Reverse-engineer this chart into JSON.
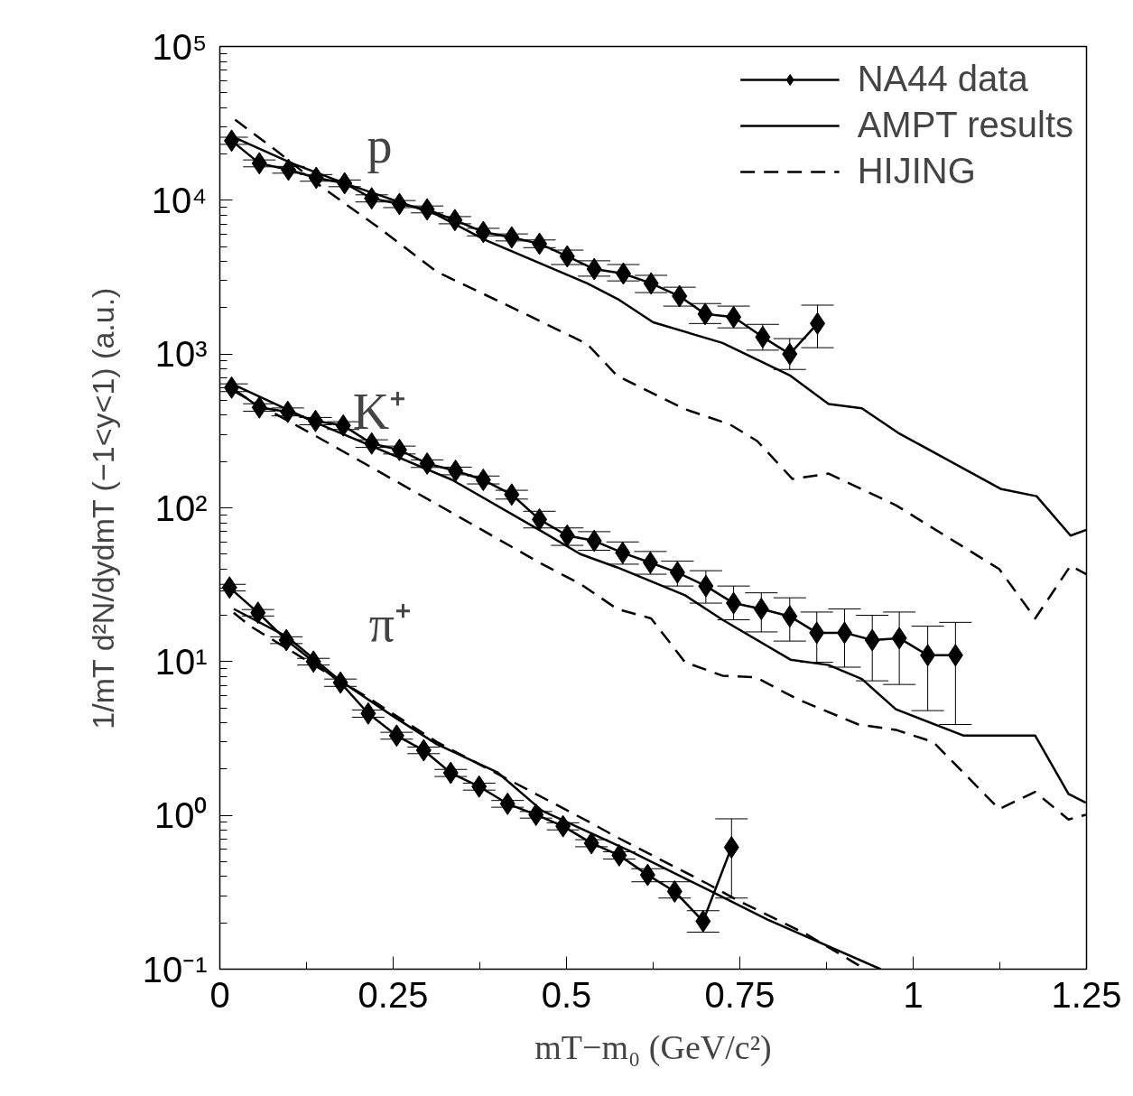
{
  "chart_data": {
    "type": "line",
    "xlabel": "mT−m₀ (GeV/c²)",
    "ylabel": "1/mT d²N/dydmT (−1<y<1) (a.u.)",
    "log": "y",
    "grid": false,
    "legend": "top right",
    "xlim": [
      0,
      1.25
    ],
    "ylim": [
      0.1,
      100000
    ],
    "xticks": [
      0,
      0.25,
      0.5,
      0.75,
      1,
      1.25
    ],
    "yticks": [
      {
        "value": 0.1,
        "label": "10⁻¹"
      },
      {
        "value": 1,
        "label": "10⁰"
      },
      {
        "value": 10,
        "label": "10¹"
      },
      {
        "value": 100,
        "label": "10²"
      },
      {
        "value": 1000,
        "label": "10³"
      },
      {
        "value": 10000,
        "label": "10⁴"
      },
      {
        "value": 100000,
        "label": "10⁵"
      }
    ],
    "annotations": [
      "p",
      "K⁺",
      "π⁺"
    ],
    "series": [
      {
        "name": "NA44 data",
        "color": "#000000",
        "marker": "diamond",
        "line_style": "solid",
        "x": [
          0.017,
          0.057,
          0.099,
          0.139,
          0.18,
          0.219,
          0.259,
          0.299,
          0.339,
          0.38,
          0.421,
          0.461,
          0.501,
          0.54,
          0.582,
          0.622,
          0.663,
          0.7,
          0.741,
          0.783,
          0.822,
          0.862
        ],
        "values": [
          24400,
          17400,
          15800,
          14000,
          12900,
          10300,
          9460,
          8730,
          7430,
          6220,
          5740,
          5220,
          4320,
          3570,
          3340,
          2880,
          2380,
          1820,
          1740,
          1290,
          1000,
          1580
        ],
        "errors": [
          1300,
          900,
          800,
          700,
          650,
          550,
          500,
          450,
          400,
          350,
          300,
          300,
          [
            3820,
            4740
          ],
          [
            3210,
            4040
          ],
          [
            2990,
            3820
          ],
          [
            2510,
            3250
          ],
          [
            2050,
            2720
          ],
          [
            1580,
            2130
          ],
          [
            1480,
            2050
          ],
          [
            1060,
            1560
          ],
          [
            794,
            1260
          ],
          [
            1100,
            2080
          ]
        ]
      },
      {
        "color": "#000000",
        "marker": "diamond",
        "line_style": "solid",
        "x": [
          0.017,
          0.057,
          0.098,
          0.138,
          0.178,
          0.219,
          0.259,
          0.299,
          0.34,
          0.38,
          0.421,
          0.461,
          0.501,
          0.54,
          0.581,
          0.621,
          0.66,
          0.701,
          0.741,
          0.781,
          0.822,
          0.861,
          0.901,
          0.941,
          0.98,
          1.021,
          1.061
        ],
        "values": [
          605,
          450,
          421,
          367,
          343,
          262,
          238,
          194,
          174,
          152,
          122,
          84,
          66,
          61,
          51,
          44,
          38,
          31,
          24,
          22,
          19.7,
          15.4,
          15.4,
          13.8,
          14.2,
          11,
          11
        ],
        "errors": [
          35,
          25,
          25,
          20,
          20,
          15,
          14,
          11,
          10,
          9,
          8,
          [
            74,
            95
          ],
          [
            57,
            74
          ],
          [
            53,
            70
          ],
          [
            43,
            60
          ],
          [
            37,
            52
          ],
          [
            31,
            45
          ],
          [
            24,
            39
          ],
          [
            18.7,
            31
          ],
          [
            15.6,
            28
          ],
          [
            13.6,
            26
          ],
          [
            9.9,
            21
          ],
          [
            9.2,
            22
          ],
          [
            7.5,
            20
          ],
          [
            7.1,
            21
          ],
          [
            4.8,
            17
          ],
          [
            3.9,
            18
          ]
        ]
      },
      {
        "color": "#000000",
        "marker": "diamond",
        "line_style": "solid",
        "x": [
          0.014,
          0.055,
          0.096,
          0.135,
          0.174,
          0.214,
          0.255,
          0.294,
          0.333,
          0.374,
          0.415,
          0.456,
          0.495,
          0.536,
          0.576,
          0.617,
          0.656,
          0.697,
          0.738
        ],
        "values": [
          30.3,
          20.8,
          13.8,
          10,
          7.3,
          4.6,
          3.3,
          2.65,
          1.89,
          1.54,
          1.19,
          1.01,
          0.85,
          0.66,
          0.55,
          0.41,
          0.32,
          0.205,
          0.62
        ],
        "errors": [
          1.5,
          1,
          0.7,
          0.5,
          0.4,
          0.25,
          0.17,
          0.13,
          0.1,
          0.08,
          0.06,
          0.05,
          0.045,
          0.035,
          0.03,
          [
            0.37,
            0.45
          ],
          [
            0.29,
            0.37
          ],
          [
            0.174,
            0.24
          ],
          [
            0.29,
            0.95
          ]
        ]
      },
      {
        "name": "AMPT results",
        "color": "#000000",
        "marker": "none",
        "line_style": "solid",
        "x": [
          0.022,
          0.104,
          0.182,
          0.313,
          0.383,
          0.53,
          0.576,
          0.625,
          0.725,
          0.823,
          0.878,
          0.926,
          0.978,
          1.126,
          1.178,
          1.227,
          1.25
        ],
        "values": [
          25500,
          17400,
          12800,
          8050,
          5510,
          2880,
          2250,
          1610,
          1180,
          723,
          474,
          444,
          308,
          133,
          119,
          66,
          72
        ]
      },
      {
        "color": "#000000",
        "marker": "none",
        "line_style": "solid",
        "x": [
          0.02,
          0.139,
          0.335,
          0.465,
          0.52,
          0.573,
          0.671,
          0.725,
          0.823,
          0.878,
          0.926,
          0.975,
          1.073,
          1.176,
          1.224,
          1.249
        ],
        "values": [
          631,
          357,
          152,
          70,
          50,
          41,
          27,
          18.7,
          10.3,
          9.5,
          7.7,
          4.9,
          3.3,
          3.3,
          1.38,
          1.21
        ]
      },
      {
        "color": "#000000",
        "marker": "none",
        "line_style": "solid",
        "x": [
          0.02,
          0.096,
          0.174,
          0.247,
          0.313,
          0.4,
          0.465,
          0.59,
          0.703,
          0.79,
          0.953
        ],
        "values": [
          22,
          14.6,
          7.5,
          4.5,
          2.9,
          1.91,
          1.07,
          0.59,
          0.33,
          0.21,
          0.1
        ]
      },
      {
        "name": "HIJING",
        "color": "#000000",
        "marker": "none",
        "line_style": "dashed",
        "x": [
          0.022,
          0.083,
          0.148,
          0.227,
          0.313,
          0.422,
          0.53,
          0.573,
          0.671,
          0.736,
          0.775,
          0.826,
          0.878,
          0.975,
          1.124,
          1.176,
          1.227,
          1.25
        ],
        "values": [
          33400,
          20800,
          12100,
          6750,
          3430,
          2000,
          1160,
          723,
          438,
          348,
          272,
          154,
          167,
          104,
          40,
          19.1,
          42,
          37
        ]
      },
      {
        "color": "#000000",
        "marker": "none",
        "line_style": "dashed",
        "x": [
          0.02,
          0.139,
          0.309,
          0.465,
          0.52,
          0.573,
          0.622,
          0.671,
          0.725,
          0.773,
          0.833,
          0.921,
          0.975,
          1.029,
          1.124,
          1.176,
          1.224,
          1.249
        ],
        "values": [
          574,
          292,
          108,
          43,
          32,
          22,
          19.1,
          9.9,
          8.1,
          7.9,
          5.7,
          3.9,
          3.6,
          3.0,
          1.1,
          1.42,
          0.94,
          1.01
        ]
      },
      {
        "color": "#000000",
        "marker": "none",
        "line_style": "dashed",
        "x": [
          0.02,
          0.044,
          0.217,
          0.313,
          0.53,
          0.573,
          0.703,
          0.747,
          0.845,
          0.926
        ],
        "values": [
          20.8,
          17,
          5.7,
          3.0,
          0.92,
          0.72,
          0.36,
          0.28,
          0.17,
          0.103
        ]
      }
    ]
  }
}
